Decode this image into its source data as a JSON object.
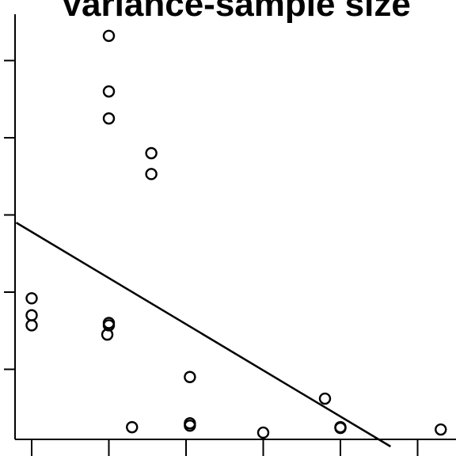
{
  "chart_data": {
    "type": "scatter",
    "title": "Variance-sample size",
    "xlabel": "",
    "ylabel": "",
    "xlim": [
      -0.2,
      5.3
    ],
    "ylim": [
      0,
      5.5
    ],
    "x_ticks": [
      0,
      1,
      2,
      3,
      4,
      5
    ],
    "y_ticks": [
      1,
      2,
      3,
      4,
      5
    ],
    "grid": false,
    "series": [
      {
        "points": [
          [
            1.0,
            5.32
          ],
          [
            1.0,
            4.6
          ],
          [
            1.0,
            4.25
          ],
          [
            1.55,
            3.8
          ],
          [
            1.55,
            3.53
          ],
          [
            0.0,
            1.92
          ],
          [
            0.0,
            1.7
          ],
          [
            0.0,
            1.57
          ],
          [
            1.0,
            1.6
          ],
          [
            1.0,
            1.57
          ],
          [
            0.98,
            1.45
          ],
          [
            1.3,
            0.25
          ],
          [
            2.05,
            0.9
          ],
          [
            2.05,
            0.3
          ],
          [
            2.05,
            0.27
          ],
          [
            3.0,
            0.18
          ],
          [
            3.8,
            0.62
          ],
          [
            4.0,
            0.25
          ],
          [
            4.0,
            0.24
          ],
          [
            5.3,
            0.22
          ]
        ],
        "marker": "open-circle",
        "color": "#000000"
      }
    ],
    "lines": [
      {
        "x": [
          -0.2,
          4.65
        ],
        "y": [
          2.9,
          0.0
        ],
        "color": "#000000"
      }
    ]
  }
}
